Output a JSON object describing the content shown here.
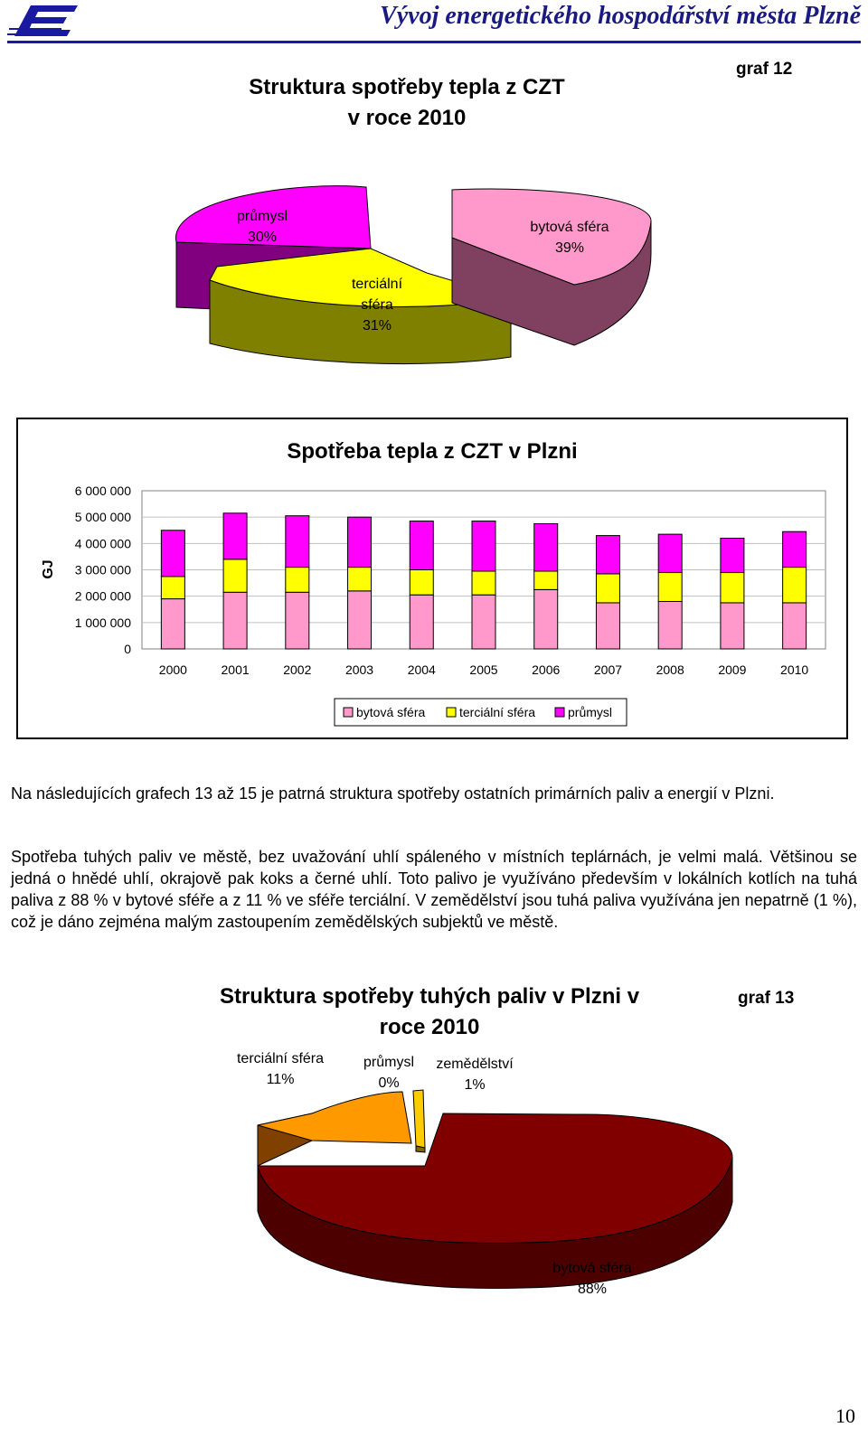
{
  "header": {
    "title": "Vývoj energetického hospodářství města Plzně"
  },
  "graph12": {
    "title_line1": "Struktura spotřeby tepla z CZT",
    "title_line2": "v roce 2010",
    "number": "graf 12",
    "chart_data": {
      "type": "pie",
      "title": "Struktura spotřeby tepla z CZT v roce 2010",
      "slices": [
        {
          "label": "průmysl",
          "value": 30,
          "pct": "30%",
          "color": "#ff00ff"
        },
        {
          "label_line1": "terciální",
          "label_line2": "sféra",
          "label": "terciální sféra",
          "value": 31,
          "pct": "31%",
          "color": "#ffff00"
        },
        {
          "label": "bytová sféra",
          "value": 39,
          "pct": "39%",
          "color": "#ff99cc"
        }
      ]
    }
  },
  "bar": {
    "title": "Spotřeba tepla z CZT v Plzni",
    "chart_data": {
      "type": "bar",
      "stacked": true,
      "title": "Spotřeba tepla z CZT v Plzni",
      "ylabel": "GJ",
      "ylim": [
        0,
        6000000
      ],
      "yticks": [
        "6 000 000",
        "5 000 000",
        "4 000 000",
        "3 000 000",
        "2 000 000",
        "1 000 000",
        "0"
      ],
      "categories": [
        "2000",
        "2001",
        "2002",
        "2003",
        "2004",
        "2005",
        "2006",
        "2007",
        "2008",
        "2009",
        "2010"
      ],
      "series": [
        {
          "name": "bytová sféra",
          "color": "#ff99cc",
          "values": [
            1900000,
            2150000,
            2150000,
            2200000,
            2050000,
            2050000,
            2250000,
            1750000,
            1800000,
            1750000,
            1750000
          ]
        },
        {
          "name": "terciální sféra",
          "color": "#ffff00",
          "values": [
            850000,
            1250000,
            950000,
            900000,
            950000,
            900000,
            700000,
            1100000,
            1100000,
            1150000,
            1350000
          ]
        },
        {
          "name": "průmysl",
          "color": "#ff00ff",
          "values": [
            1750000,
            1750000,
            1950000,
            1900000,
            1850000,
            1900000,
            1800000,
            1450000,
            1450000,
            1300000,
            1350000
          ]
        }
      ],
      "legend_position": "bottom"
    }
  },
  "text": {
    "p1": "Na následujících grafech 13 až 15 je patrná struktura spotřeby ostatních primárních paliv a energií v Plzni.",
    "p2": "Spotřeba tuhých paliv ve městě, bez uvažování uhlí spáleného v místních teplárnách, je velmi malá. Většinou se jedná o hnědé uhlí, okrajově pak koks a černé uhlí. Toto palivo je využíváno především v lokálních kotlích na tuhá paliva z 88 % v bytové sféře a z 11 % ve sféře terciální. V zemědělství jsou tuhá paliva využívána jen nepatrně (1 %), což je dáno zejména malým zastoupením zemědělských subjektů ve městě."
  },
  "graph13": {
    "title_line1": "Struktura spotřeby tuhých paliv v Plzni v",
    "title_line2": "roce 2010",
    "number": "graf 13",
    "chart_data": {
      "type": "pie",
      "title": "Struktura spotřeby tuhých paliv v Plzni v roce 2010",
      "slices": [
        {
          "label": "terciální sféra",
          "value": 11,
          "pct": "11%",
          "color": "#ff9900"
        },
        {
          "label": "průmysl",
          "value": 0,
          "pct": "0%",
          "color": "#ffff66"
        },
        {
          "label": "zemědělství",
          "value": 1,
          "pct": "1%",
          "color": "#ffcc00"
        },
        {
          "label": "bytová sféra",
          "value": 88,
          "pct": "88%",
          "color": "#800000"
        }
      ]
    }
  },
  "page_number": "10"
}
